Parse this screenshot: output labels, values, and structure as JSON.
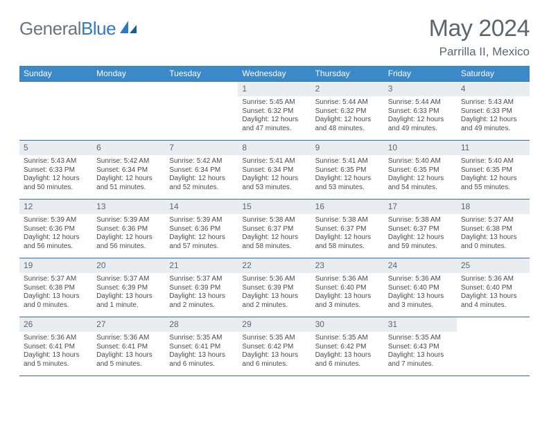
{
  "logo": {
    "text1": "General",
    "text2": "Blue"
  },
  "title": "May 2024",
  "location": "Parrilla II, Mexico",
  "colors": {
    "header_bg": "#3b89c9",
    "header_text": "#ffffff",
    "border": "#2f6fa8",
    "daynum_bg": "#e9edf0",
    "text": "#4a4a4a",
    "title_text": "#5b6670",
    "logo_gray": "#68757e",
    "logo_blue": "#2f7bbf"
  },
  "weekdays": [
    "Sunday",
    "Monday",
    "Tuesday",
    "Wednesday",
    "Thursday",
    "Friday",
    "Saturday"
  ],
  "weeks": [
    [
      {
        "n": "",
        "sr": "",
        "ss": "",
        "dl1": "",
        "dl2": ""
      },
      {
        "n": "",
        "sr": "",
        "ss": "",
        "dl1": "",
        "dl2": ""
      },
      {
        "n": "",
        "sr": "",
        "ss": "",
        "dl1": "",
        "dl2": ""
      },
      {
        "n": "1",
        "sr": "Sunrise: 5:45 AM",
        "ss": "Sunset: 6:32 PM",
        "dl1": "Daylight: 12 hours",
        "dl2": "and 47 minutes."
      },
      {
        "n": "2",
        "sr": "Sunrise: 5:44 AM",
        "ss": "Sunset: 6:32 PM",
        "dl1": "Daylight: 12 hours",
        "dl2": "and 48 minutes."
      },
      {
        "n": "3",
        "sr": "Sunrise: 5:44 AM",
        "ss": "Sunset: 6:33 PM",
        "dl1": "Daylight: 12 hours",
        "dl2": "and 49 minutes."
      },
      {
        "n": "4",
        "sr": "Sunrise: 5:43 AM",
        "ss": "Sunset: 6:33 PM",
        "dl1": "Daylight: 12 hours",
        "dl2": "and 49 minutes."
      }
    ],
    [
      {
        "n": "5",
        "sr": "Sunrise: 5:43 AM",
        "ss": "Sunset: 6:33 PM",
        "dl1": "Daylight: 12 hours",
        "dl2": "and 50 minutes."
      },
      {
        "n": "6",
        "sr": "Sunrise: 5:42 AM",
        "ss": "Sunset: 6:34 PM",
        "dl1": "Daylight: 12 hours",
        "dl2": "and 51 minutes."
      },
      {
        "n": "7",
        "sr": "Sunrise: 5:42 AM",
        "ss": "Sunset: 6:34 PM",
        "dl1": "Daylight: 12 hours",
        "dl2": "and 52 minutes."
      },
      {
        "n": "8",
        "sr": "Sunrise: 5:41 AM",
        "ss": "Sunset: 6:34 PM",
        "dl1": "Daylight: 12 hours",
        "dl2": "and 53 minutes."
      },
      {
        "n": "9",
        "sr": "Sunrise: 5:41 AM",
        "ss": "Sunset: 6:35 PM",
        "dl1": "Daylight: 12 hours",
        "dl2": "and 53 minutes."
      },
      {
        "n": "10",
        "sr": "Sunrise: 5:40 AM",
        "ss": "Sunset: 6:35 PM",
        "dl1": "Daylight: 12 hours",
        "dl2": "and 54 minutes."
      },
      {
        "n": "11",
        "sr": "Sunrise: 5:40 AM",
        "ss": "Sunset: 6:35 PM",
        "dl1": "Daylight: 12 hours",
        "dl2": "and 55 minutes."
      }
    ],
    [
      {
        "n": "12",
        "sr": "Sunrise: 5:39 AM",
        "ss": "Sunset: 6:36 PM",
        "dl1": "Daylight: 12 hours",
        "dl2": "and 56 minutes."
      },
      {
        "n": "13",
        "sr": "Sunrise: 5:39 AM",
        "ss": "Sunset: 6:36 PM",
        "dl1": "Daylight: 12 hours",
        "dl2": "and 56 minutes."
      },
      {
        "n": "14",
        "sr": "Sunrise: 5:39 AM",
        "ss": "Sunset: 6:36 PM",
        "dl1": "Daylight: 12 hours",
        "dl2": "and 57 minutes."
      },
      {
        "n": "15",
        "sr": "Sunrise: 5:38 AM",
        "ss": "Sunset: 6:37 PM",
        "dl1": "Daylight: 12 hours",
        "dl2": "and 58 minutes."
      },
      {
        "n": "16",
        "sr": "Sunrise: 5:38 AM",
        "ss": "Sunset: 6:37 PM",
        "dl1": "Daylight: 12 hours",
        "dl2": "and 58 minutes."
      },
      {
        "n": "17",
        "sr": "Sunrise: 5:38 AM",
        "ss": "Sunset: 6:37 PM",
        "dl1": "Daylight: 12 hours",
        "dl2": "and 59 minutes."
      },
      {
        "n": "18",
        "sr": "Sunrise: 5:37 AM",
        "ss": "Sunset: 6:38 PM",
        "dl1": "Daylight: 13 hours",
        "dl2": "and 0 minutes."
      }
    ],
    [
      {
        "n": "19",
        "sr": "Sunrise: 5:37 AM",
        "ss": "Sunset: 6:38 PM",
        "dl1": "Daylight: 13 hours",
        "dl2": "and 0 minutes."
      },
      {
        "n": "20",
        "sr": "Sunrise: 5:37 AM",
        "ss": "Sunset: 6:39 PM",
        "dl1": "Daylight: 13 hours",
        "dl2": "and 1 minute."
      },
      {
        "n": "21",
        "sr": "Sunrise: 5:37 AM",
        "ss": "Sunset: 6:39 PM",
        "dl1": "Daylight: 13 hours",
        "dl2": "and 2 minutes."
      },
      {
        "n": "22",
        "sr": "Sunrise: 5:36 AM",
        "ss": "Sunset: 6:39 PM",
        "dl1": "Daylight: 13 hours",
        "dl2": "and 2 minutes."
      },
      {
        "n": "23",
        "sr": "Sunrise: 5:36 AM",
        "ss": "Sunset: 6:40 PM",
        "dl1": "Daylight: 13 hours",
        "dl2": "and 3 minutes."
      },
      {
        "n": "24",
        "sr": "Sunrise: 5:36 AM",
        "ss": "Sunset: 6:40 PM",
        "dl1": "Daylight: 13 hours",
        "dl2": "and 3 minutes."
      },
      {
        "n": "25",
        "sr": "Sunrise: 5:36 AM",
        "ss": "Sunset: 6:40 PM",
        "dl1": "Daylight: 13 hours",
        "dl2": "and 4 minutes."
      }
    ],
    [
      {
        "n": "26",
        "sr": "Sunrise: 5:36 AM",
        "ss": "Sunset: 6:41 PM",
        "dl1": "Daylight: 13 hours",
        "dl2": "and 5 minutes."
      },
      {
        "n": "27",
        "sr": "Sunrise: 5:36 AM",
        "ss": "Sunset: 6:41 PM",
        "dl1": "Daylight: 13 hours",
        "dl2": "and 5 minutes."
      },
      {
        "n": "28",
        "sr": "Sunrise: 5:35 AM",
        "ss": "Sunset: 6:41 PM",
        "dl1": "Daylight: 13 hours",
        "dl2": "and 6 minutes."
      },
      {
        "n": "29",
        "sr": "Sunrise: 5:35 AM",
        "ss": "Sunset: 6:42 PM",
        "dl1": "Daylight: 13 hours",
        "dl2": "and 6 minutes."
      },
      {
        "n": "30",
        "sr": "Sunrise: 5:35 AM",
        "ss": "Sunset: 6:42 PM",
        "dl1": "Daylight: 13 hours",
        "dl2": "and 6 minutes."
      },
      {
        "n": "31",
        "sr": "Sunrise: 5:35 AM",
        "ss": "Sunset: 6:43 PM",
        "dl1": "Daylight: 13 hours",
        "dl2": "and 7 minutes."
      },
      {
        "n": "",
        "sr": "",
        "ss": "",
        "dl1": "",
        "dl2": ""
      }
    ]
  ]
}
